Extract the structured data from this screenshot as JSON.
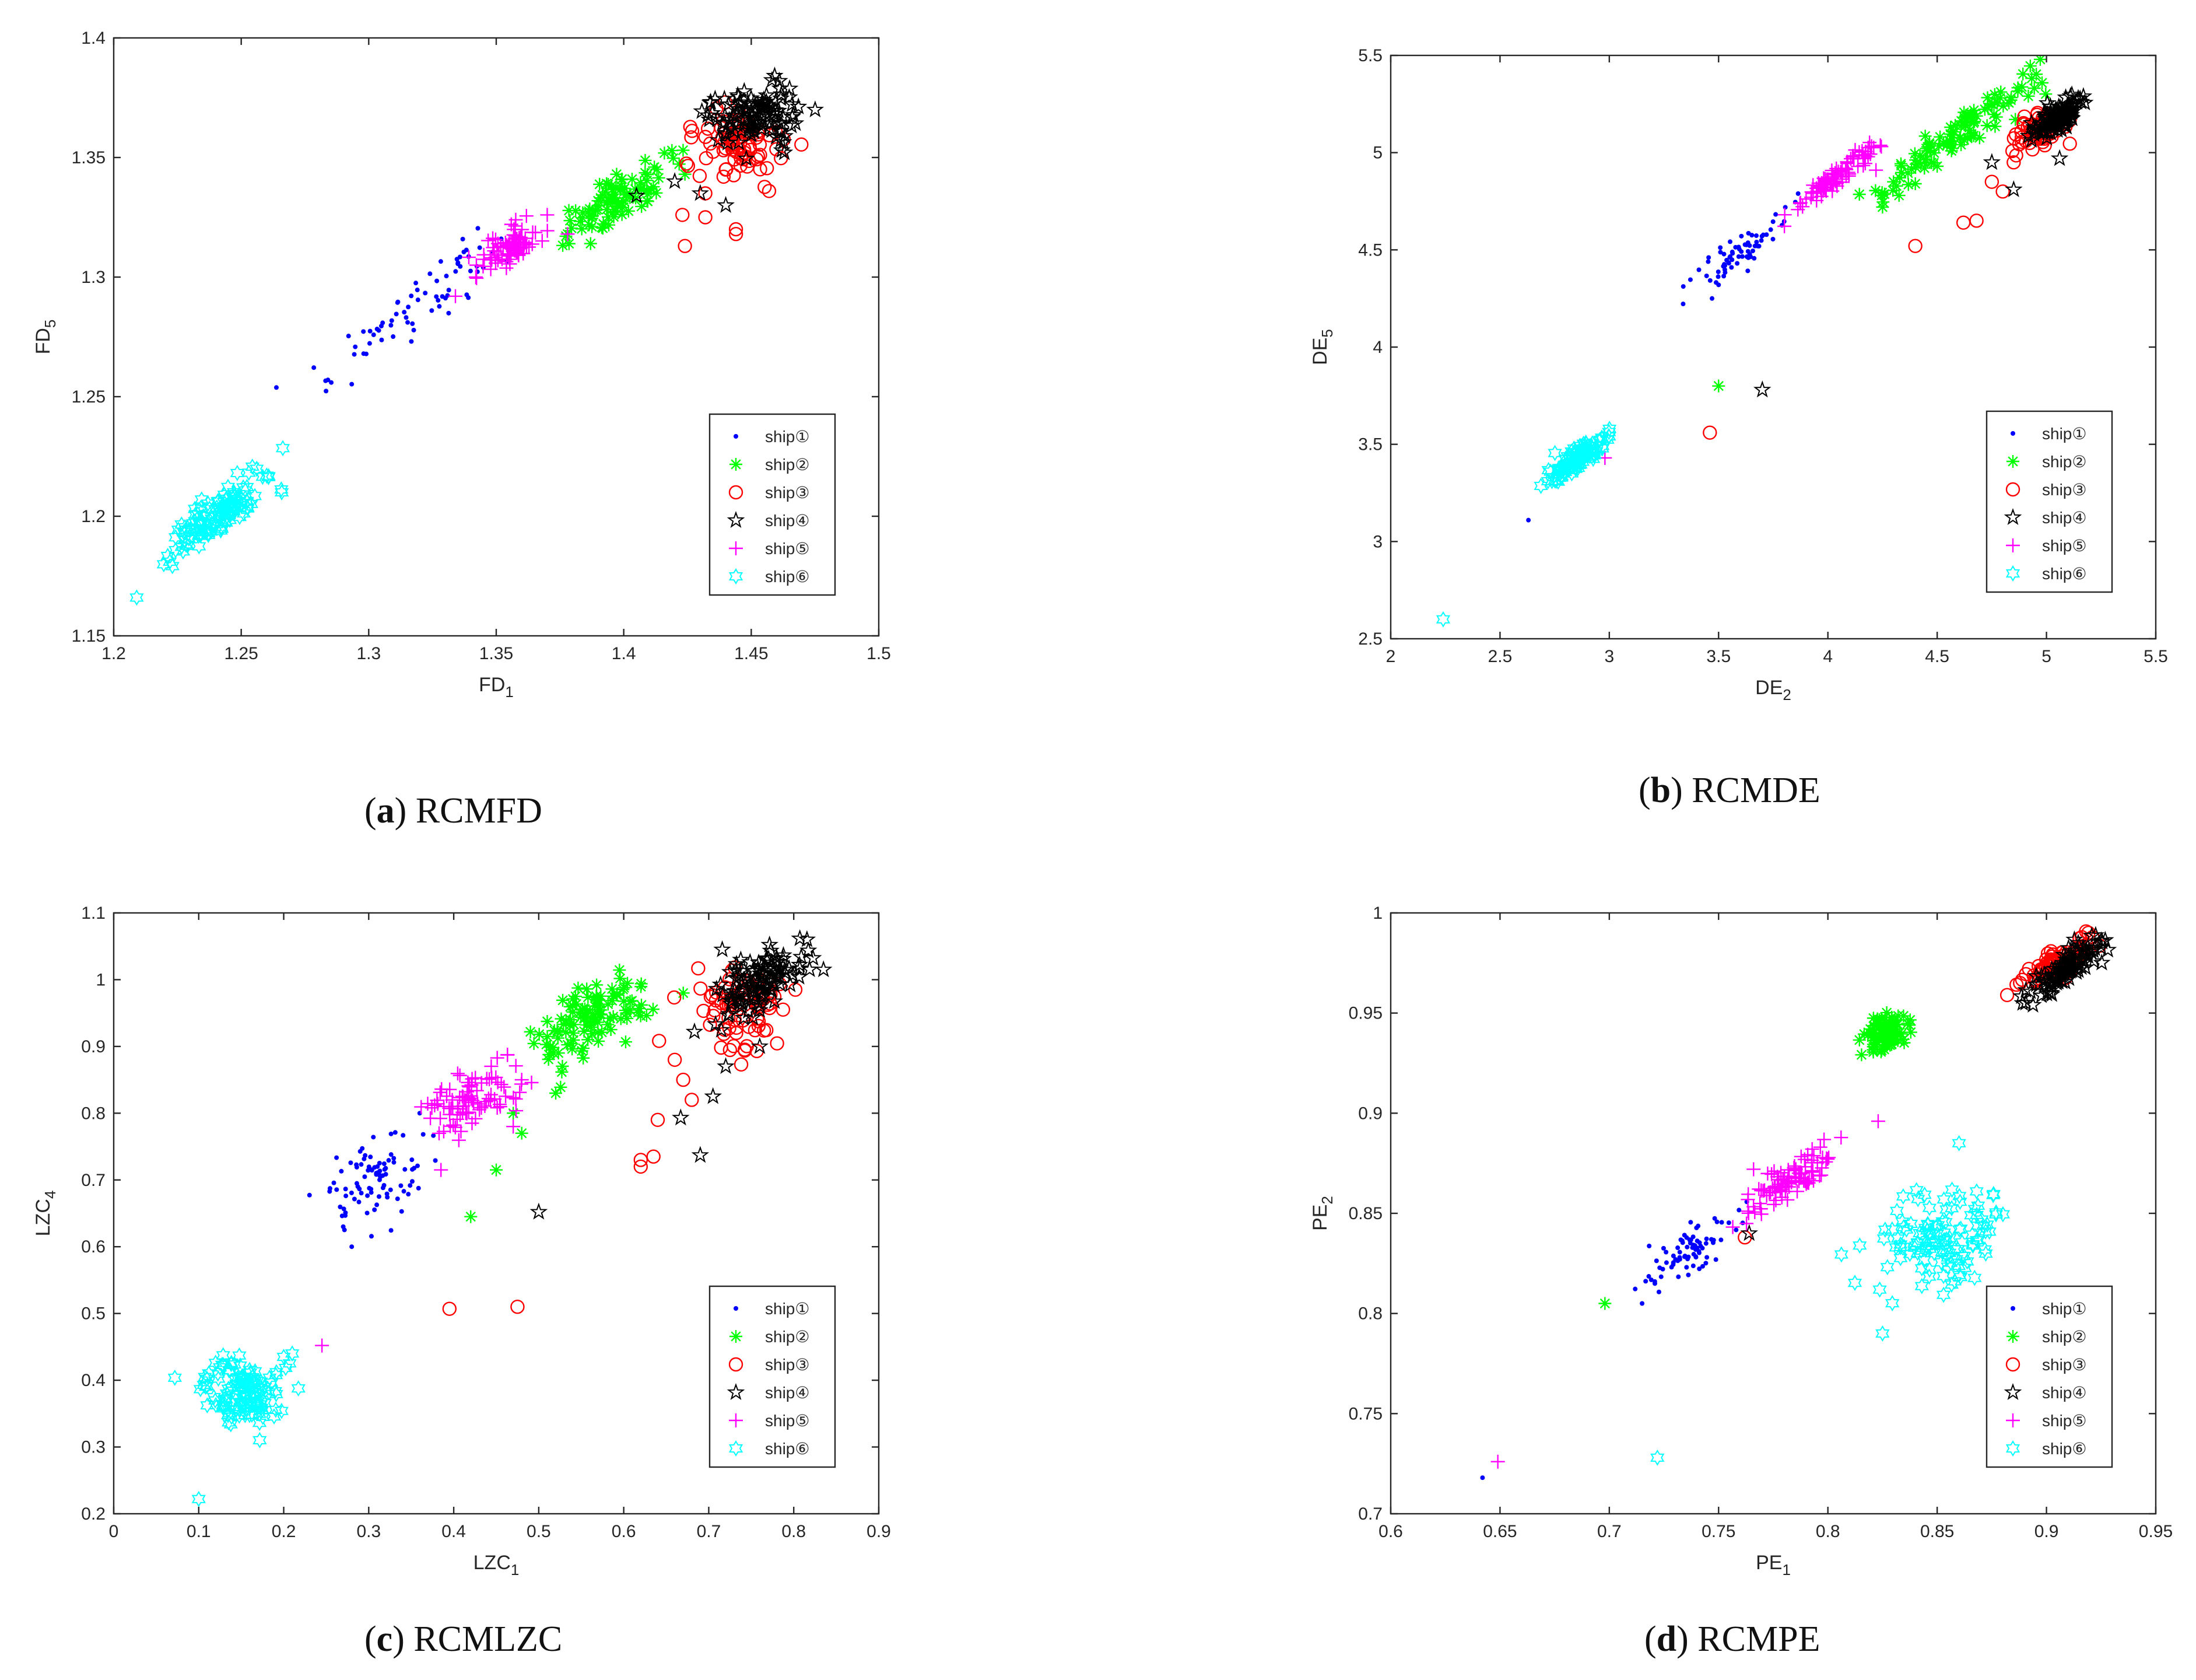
{
  "figure": {
    "colors": {
      "ship1": "#0000ff",
      "ship2": "#00ff00",
      "ship3": "#ff0000",
      "ship4": "#000000",
      "ship5": "#ff00ff",
      "ship6": "#00ffff"
    },
    "markers": {
      "ship1": "point",
      "ship2": "asterisk",
      "ship3": "circle",
      "ship4": "pentagram",
      "ship5": "plus",
      "ship6": "hexagram"
    }
  },
  "chart_data": [
    {
      "id": "a",
      "type": "scatter",
      "caption_letter": "a",
      "caption_open": "(",
      "caption_close": ")",
      "caption_name": "RCMFD",
      "xlabel_base": "FD",
      "xlabel_sub": "1",
      "ylabel_base": "FD",
      "ylabel_sub": "5",
      "xlim": [
        1.2,
        1.5
      ],
      "ylim": [
        1.15,
        1.4
      ],
      "xticks": [
        "1.2",
        "1.25",
        "1.3",
        "1.35",
        "1.4",
        "1.45",
        "1.5"
      ],
      "yticks": [
        "1.15",
        "1.2",
        "1.25",
        "1.3",
        "1.35",
        "1.4"
      ],
      "legend_position": "lower-right",
      "series": [
        {
          "name": "ship①",
          "key": "ship1",
          "center": [
            1.315,
            1.285
          ],
          "spread_along": 0.04,
          "spread_across": 0.006,
          "n": 70,
          "outliers": [
            [
              1.284,
              1.257
            ],
            [
              1.298,
              1.268
            ],
            [
              1.335,
              1.306
            ]
          ]
        },
        {
          "name": "ship②",
          "key": "ship2",
          "center": [
            1.398,
            1.333
          ],
          "spread_along": 0.022,
          "spread_across": 0.005,
          "n": 90,
          "outliers": [
            [
              1.378,
              1.318
            ],
            [
              1.387,
              1.314
            ],
            [
              1.412,
              1.346
            ],
            [
              1.424,
              1.343
            ]
          ]
        },
        {
          "name": "ship③",
          "key": "ship3",
          "center": [
            1.445,
            1.355
          ],
          "spread_along": 0.012,
          "spread_across": 0.01,
          "n": 80,
          "outliers": [
            [
              1.424,
              1.313
            ],
            [
              1.423,
              1.326
            ],
            [
              1.444,
              1.318
            ],
            [
              1.444,
              1.32
            ],
            [
              1.432,
              1.325
            ],
            [
              1.457,
              1.336
            ],
            [
              1.432,
              1.335
            ]
          ]
        },
        {
          "name": "ship④",
          "key": "ship4",
          "center": [
            1.452,
            1.368
          ],
          "spread_along": 0.012,
          "spread_across": 0.009,
          "n": 110,
          "outliers": [
            [
              1.405,
              1.334
            ],
            [
              1.42,
              1.34
            ],
            [
              1.43,
              1.335
            ],
            [
              1.44,
              1.33
            ],
            [
              1.461,
              1.382
            ],
            [
              1.462,
              1.353
            ]
          ]
        },
        {
          "name": "ship⑤",
          "key": "ship5",
          "center": [
            1.356,
            1.313
          ],
          "spread_along": 0.012,
          "spread_across": 0.004,
          "n": 80,
          "outliers": [
            [
              1.334,
              1.292
            ],
            [
              1.37,
              1.326
            ],
            [
              1.378,
              1.318
            ],
            [
              1.342,
              1.3
            ]
          ]
        },
        {
          "name": "ship⑥",
          "key": "ship6",
          "center": [
            1.241,
            1.2
          ],
          "spread_along": 0.02,
          "spread_across": 0.005,
          "n": 130,
          "outliers": [
            [
              1.209,
              1.166
            ],
            [
              1.26,
              1.217
            ],
            [
              1.222,
              1.181
            ]
          ]
        }
      ]
    },
    {
      "id": "b",
      "type": "scatter",
      "caption_letter": "b",
      "caption_open": "(",
      "caption_close": ")",
      "caption_name": "RCMDE",
      "xlabel_base": "DE",
      "xlabel_sub": "2",
      "ylabel_base": "DE",
      "ylabel_sub": "5",
      "xlim": [
        2,
        5.5
      ],
      "ylim": [
        2.5,
        5.5
      ],
      "xticks": [
        "2",
        "2.5",
        "3",
        "3.5",
        "4",
        "4.5",
        "5",
        "5.5"
      ],
      "yticks": [
        "2.5",
        "3",
        "3.5",
        "4",
        "4.5",
        "5",
        "5.5"
      ],
      "legend_position": "lower-right",
      "series": [
        {
          "name": "ship①",
          "key": "ship1",
          "center": [
            3.62,
            4.5
          ],
          "spread_along": 0.2,
          "spread_across": 0.05,
          "n": 70,
          "outliers": [
            [
              2.63,
              3.11
            ],
            [
              3.47,
              4.25
            ],
            [
              3.5,
              4.32
            ]
          ]
        },
        {
          "name": "ship②",
          "key": "ship2",
          "center": [
            4.6,
            5.1
          ],
          "spread_along": 0.35,
          "spread_across": 0.05,
          "n": 110,
          "outliers": [
            [
              3.5,
              3.8
            ],
            [
              4.25,
              4.72
            ],
            [
              4.4,
              4.84
            ],
            [
              4.5,
              4.93
            ],
            [
              4.3,
              4.85
            ]
          ]
        },
        {
          "name": "ship③",
          "key": "ship3",
          "center": [
            4.98,
            5.12
          ],
          "spread_along": 0.12,
          "spread_across": 0.06,
          "n": 70,
          "outliers": [
            [
              3.46,
              3.56
            ],
            [
              4.4,
              4.52
            ],
            [
              4.62,
              4.64
            ],
            [
              4.68,
              4.65
            ],
            [
              4.75,
              4.85
            ],
            [
              4.8,
              4.8
            ],
            [
              4.85,
              4.95
            ]
          ]
        },
        {
          "name": "ship④",
          "key": "ship4",
          "center": [
            5.05,
            5.18
          ],
          "spread_along": 0.12,
          "spread_across": 0.04,
          "n": 110,
          "outliers": [
            [
              3.7,
              3.78
            ],
            [
              4.75,
              4.95
            ],
            [
              4.85,
              4.81
            ],
            [
              5.06,
              4.97
            ]
          ]
        },
        {
          "name": "ship⑤",
          "key": "ship5",
          "center": [
            4.05,
            4.88
          ],
          "spread_along": 0.18,
          "spread_across": 0.03,
          "n": 90,
          "outliers": [
            [
              2.98,
              3.43
            ],
            [
              4.22,
              4.91
            ]
          ]
        },
        {
          "name": "ship⑥",
          "key": "ship6",
          "center": [
            2.85,
            3.42
          ],
          "spread_along": 0.13,
          "spread_across": 0.03,
          "n": 120,
          "outliers": [
            [
              2.24,
              2.6
            ]
          ]
        }
      ]
    },
    {
      "id": "c",
      "type": "scatter",
      "caption_letter": "c",
      "caption_open": "(",
      "caption_close": ")",
      "caption_name": "RCMLZC",
      "xlabel_base": "LZC",
      "xlabel_sub": "1",
      "ylabel_base": "LZC",
      "ylabel_sub": "4",
      "xlim": [
        0,
        0.9
      ],
      "ylim": [
        0.2,
        1.1
      ],
      "xticks": [
        "0",
        "0.1",
        "0.2",
        "0.3",
        "0.4",
        "0.5",
        "0.6",
        "0.7",
        "0.8",
        "0.9"
      ],
      "yticks": [
        "0.2",
        "0.3",
        "0.4",
        "0.5",
        "0.6",
        "0.7",
        "0.8",
        "0.9",
        "1",
        "1.1"
      ],
      "legend_position": "lower-right",
      "series": [
        {
          "name": "ship①",
          "key": "ship1",
          "center": [
            0.31,
            0.7
          ],
          "spread_along": 0.05,
          "spread_across": 0.035,
          "n": 90,
          "outliers": [
            [
              0.28,
              0.6
            ],
            [
              0.27,
              0.63
            ],
            [
              0.36,
              0.8
            ]
          ]
        },
        {
          "name": "ship②",
          "key": "ship2",
          "center": [
            0.56,
            0.94
          ],
          "spread_along": 0.06,
          "spread_across": 0.035,
          "n": 110,
          "outliers": [
            [
              0.42,
              0.645
            ],
            [
              0.45,
              0.715
            ],
            [
              0.48,
              0.77
            ],
            [
              0.47,
              0.8
            ],
            [
              0.52,
              0.83
            ],
            [
              0.67,
              0.98
            ]
          ]
        },
        {
          "name": "ship③",
          "key": "ship3",
          "center": [
            0.735,
            0.96
          ],
          "spread_along": 0.05,
          "spread_across": 0.04,
          "n": 80,
          "outliers": [
            [
              0.395,
              0.507
            ],
            [
              0.475,
              0.51
            ],
            [
              0.62,
              0.72
            ],
            [
              0.62,
              0.73
            ],
            [
              0.635,
              0.735
            ],
            [
              0.64,
              0.79
            ],
            [
              0.67,
              0.85
            ],
            [
              0.66,
              0.88
            ],
            [
              0.68,
              0.82
            ]
          ]
        },
        {
          "name": "ship④",
          "key": "ship4",
          "center": [
            0.76,
            1.0
          ],
          "spread_along": 0.05,
          "spread_across": 0.025,
          "n": 110,
          "outliers": [
            [
              0.5,
              0.652
            ],
            [
              0.667,
              0.793
            ],
            [
              0.69,
              0.737
            ],
            [
              0.705,
              0.825
            ],
            [
              0.72,
              0.87
            ],
            [
              0.76,
              0.9
            ],
            [
              0.835,
              1.015
            ]
          ]
        },
        {
          "name": "ship⑤",
          "key": "ship5",
          "center": [
            0.42,
            0.82
          ],
          "spread_along": 0.05,
          "spread_across": 0.03,
          "n": 90,
          "outliers": [
            [
              0.245,
              0.452
            ],
            [
              0.385,
              0.715
            ],
            [
              0.48,
              0.85
            ],
            [
              0.47,
              0.78
            ]
          ]
        },
        {
          "name": "ship⑥",
          "key": "ship6",
          "center": [
            0.155,
            0.38
          ],
          "spread_along": 0.03,
          "spread_across": 0.035,
          "n": 130,
          "outliers": [
            [
              0.1,
              0.222
            ],
            [
              0.2,
              0.435
            ],
            [
              0.21,
              0.44
            ]
          ]
        }
      ]
    },
    {
      "id": "d",
      "type": "scatter",
      "caption_letter": "d",
      "caption_open": "(",
      "caption_close": ")",
      "caption_name": "RCMPE",
      "xlabel_base": "PE",
      "xlabel_sub": "1",
      "ylabel_base": "PE",
      "ylabel_sub": "2",
      "xlim": [
        0.6,
        0.95
      ],
      "ylim": [
        0.7,
        1.0
      ],
      "xticks": [
        "0.6",
        "0.65",
        "0.7",
        "0.75",
        "0.8",
        "0.85",
        "0.9",
        "0.95"
      ],
      "yticks": [
        "0.7",
        "0.75",
        "0.8",
        "0.85",
        "0.9",
        "0.95",
        "1"
      ],
      "legend_position": "lower-right",
      "series": [
        {
          "name": "ship①",
          "key": "ship1",
          "center": [
            0.737,
            0.832
          ],
          "spread_along": 0.02,
          "spread_across": 0.006,
          "n": 80,
          "outliers": [
            [
              0.642,
              0.718
            ],
            [
              0.715,
              0.805
            ]
          ]
        },
        {
          "name": "ship②",
          "key": "ship2",
          "center": [
            0.826,
            0.94
          ],
          "spread_along": 0.008,
          "spread_across": 0.006,
          "n": 90,
          "outliers": [
            [
              0.698,
              0.805
            ]
          ]
        },
        {
          "name": "ship③",
          "key": "ship3",
          "center": [
            0.906,
            0.975
          ],
          "spread_along": 0.018,
          "spread_across": 0.004,
          "n": 80,
          "outliers": [
            [
              0.762,
              0.838
            ],
            [
              0.882,
              0.959
            ]
          ]
        },
        {
          "name": "ship④",
          "key": "ship4",
          "center": [
            0.91,
            0.973
          ],
          "spread_along": 0.018,
          "spread_across": 0.004,
          "n": 110,
          "outliers": [
            [
              0.764,
              0.84
            ]
          ]
        },
        {
          "name": "ship⑤",
          "key": "ship5",
          "center": [
            0.782,
            0.866
          ],
          "spread_along": 0.02,
          "spread_across": 0.005,
          "n": 100,
          "outliers": [
            [
              0.649,
              0.726
            ],
            [
              0.823,
              0.896
            ],
            [
              0.766,
              0.872
            ]
          ]
        },
        {
          "name": "ship⑥",
          "key": "ship6",
          "center": [
            0.852,
            0.838
          ],
          "spread_along": 0.022,
          "spread_across": 0.014,
          "n": 120,
          "outliers": [
            [
              0.722,
              0.728
            ],
            [
              0.86,
              0.885
            ],
            [
              0.825,
              0.79
            ]
          ]
        }
      ]
    }
  ]
}
